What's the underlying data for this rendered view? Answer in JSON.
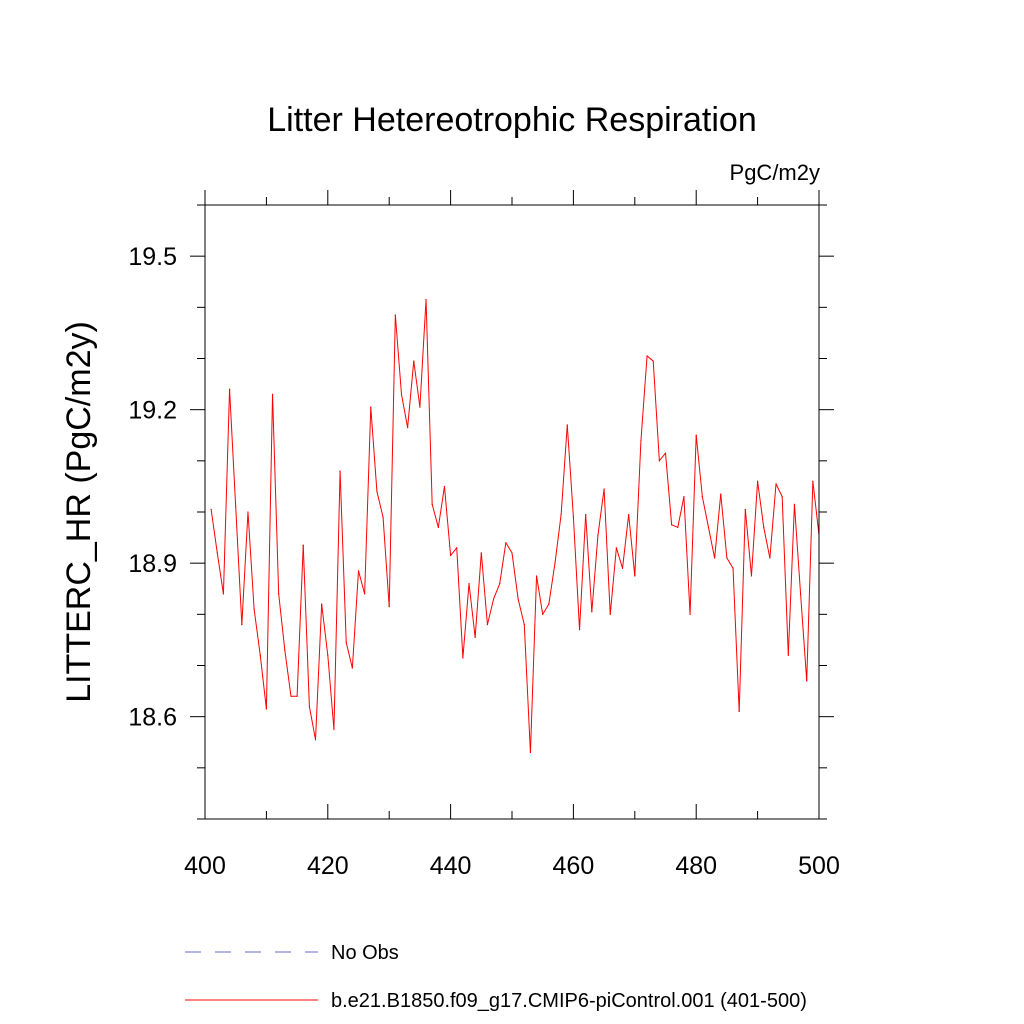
{
  "chart_data": {
    "type": "line",
    "title": "Litter Hetereotrophic Respiration",
    "units": "PgC/m2y",
    "ylabel": "LITTERC_HR  (PgC/m2y)",
    "xlabel": "",
    "xlim": [
      400,
      500
    ],
    "ylim": [
      18.4,
      19.6
    ],
    "xticks": [
      400,
      420,
      440,
      460,
      480,
      500
    ],
    "xtick_labels": [
      "400",
      "420",
      "440",
      "460",
      "480",
      "500"
    ],
    "yticks": [
      18.6,
      18.9,
      19.2,
      19.5
    ],
    "ytick_labels": [
      "18.6",
      "18.9",
      "19.2",
      "19.5"
    ],
    "x_minor_step": 10,
    "y_minor_step": 0.1,
    "grid": false,
    "legend_position": "bottom",
    "series": [
      {
        "name": "b.e21.B1850.f09_g17.CMIP6-piControl.001 (401-500)",
        "color": "#ff0000",
        "dash": "solid",
        "x": [
          401,
          402,
          403,
          404,
          405,
          406,
          407,
          408,
          409,
          410,
          411,
          412,
          413,
          414,
          415,
          416,
          417,
          418,
          419,
          420,
          421,
          422,
          423,
          424,
          425,
          426,
          427,
          428,
          429,
          430,
          431,
          432,
          433,
          434,
          435,
          436,
          437,
          438,
          439,
          440,
          441,
          442,
          443,
          444,
          445,
          446,
          447,
          448,
          449,
          450,
          451,
          452,
          453,
          454,
          455,
          456,
          457,
          458,
          459,
          460,
          461,
          462,
          463,
          464,
          465,
          466,
          467,
          468,
          469,
          470,
          471,
          472,
          473,
          474,
          475,
          476,
          477,
          478,
          479,
          480,
          481,
          482,
          483,
          484,
          485,
          486,
          487,
          488,
          489,
          490,
          491,
          492,
          493,
          494,
          495,
          496,
          497,
          498,
          499,
          500
        ],
        "values": [
          19.005,
          18.92,
          18.84,
          19.24,
          19.01,
          18.78,
          19.0,
          18.81,
          18.72,
          18.615,
          19.23,
          18.84,
          18.73,
          18.64,
          18.64,
          18.935,
          18.62,
          18.555,
          18.82,
          18.72,
          18.575,
          19.08,
          18.745,
          18.695,
          18.885,
          18.84,
          19.205,
          19.04,
          18.99,
          18.815,
          19.385,
          19.23,
          19.165,
          19.295,
          19.205,
          19.415,
          19.015,
          18.97,
          19.05,
          18.915,
          18.93,
          18.715,
          18.86,
          18.755,
          18.92,
          18.78,
          18.83,
          18.86,
          18.94,
          18.92,
          18.83,
          18.78,
          18.53,
          18.875,
          18.8,
          18.82,
          18.9,
          18.995,
          19.17,
          18.99,
          18.77,
          18.995,
          18.805,
          18.955,
          19.045,
          18.8,
          18.93,
          18.89,
          18.995,
          18.875,
          19.14,
          19.305,
          19.295,
          19.1,
          19.115,
          18.975,
          18.97,
          19.03,
          18.8,
          19.15,
          19.03,
          18.97,
          18.91,
          19.035,
          18.91,
          18.89,
          18.61,
          19.005,
          18.875,
          19.06,
          18.97,
          18.91,
          19.055,
          19.03,
          18.72,
          19.015,
          18.84,
          18.67,
          19.06,
          18.955
        ]
      }
    ],
    "legend": [
      {
        "label": "No Obs",
        "color": "#6a6ac8",
        "dash": "dashed"
      },
      {
        "label": "b.e21.B1850.f09_g17.CMIP6-piControl.001 (401-500)",
        "color": "#ff0000",
        "dash": "solid"
      }
    ]
  }
}
